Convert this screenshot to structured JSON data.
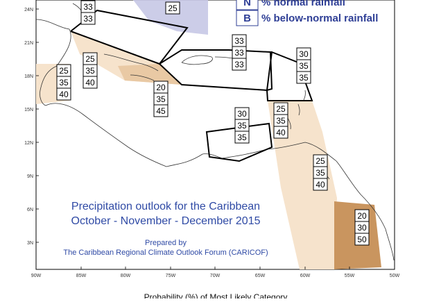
{
  "legend": [
    {
      "letter": "N",
      "text": "% normal rainfall"
    },
    {
      "letter": "B",
      "text": "% below-normal rainfall"
    }
  ],
  "title_lines": [
    "Precipitation outlook for the Caribbean",
    "October - November - December 2015"
  ],
  "credit_lines": [
    "Prepared by",
    "The Caribbean Regional Climate Outlook Forum (CARICOF)"
  ],
  "footer": "Probability (%) of Most Likely Category",
  "lat_labels": [
    "24N",
    "21N",
    "18N",
    "15N",
    "12N",
    "9N",
    "6N",
    "3N"
  ],
  "lon_labels": [
    "90W",
    "85W",
    "80W",
    "75W",
    "70W",
    "65W",
    "60W",
    "55W",
    "50W"
  ],
  "boxes": [
    {
      "id": "bahamas-north",
      "values": [
        "33",
        "33"
      ]
    },
    {
      "id": "bahamas-east",
      "values": [
        "25"
      ]
    },
    {
      "id": "western-caribbean",
      "values": [
        "25",
        "35",
        "40"
      ]
    },
    {
      "id": "belize",
      "values": [
        "25",
        "35",
        "40"
      ]
    },
    {
      "id": "jamaica",
      "values": [
        "20",
        "35",
        "45"
      ]
    },
    {
      "id": "greater-antilles",
      "values": [
        "33",
        "33",
        "33"
      ]
    },
    {
      "id": "leeward-islands",
      "values": [
        "30",
        "35",
        "35"
      ]
    },
    {
      "id": "abc-islands",
      "values": [
        "30",
        "35",
        "35"
      ]
    },
    {
      "id": "windward-islands",
      "values": [
        "25",
        "35",
        "40"
      ]
    },
    {
      "id": "venezuela-coast",
      "values": [
        "25",
        "35",
        "40"
      ]
    },
    {
      "id": "guianas",
      "values": [
        "20",
        "30",
        "50"
      ]
    }
  ],
  "colors": {
    "below_light": "#f6e3cc",
    "below_mid": "#e9c9a4",
    "below_dark": "#c9955f",
    "above": "#c6c8e6",
    "text_blue": "#2f3f96"
  }
}
